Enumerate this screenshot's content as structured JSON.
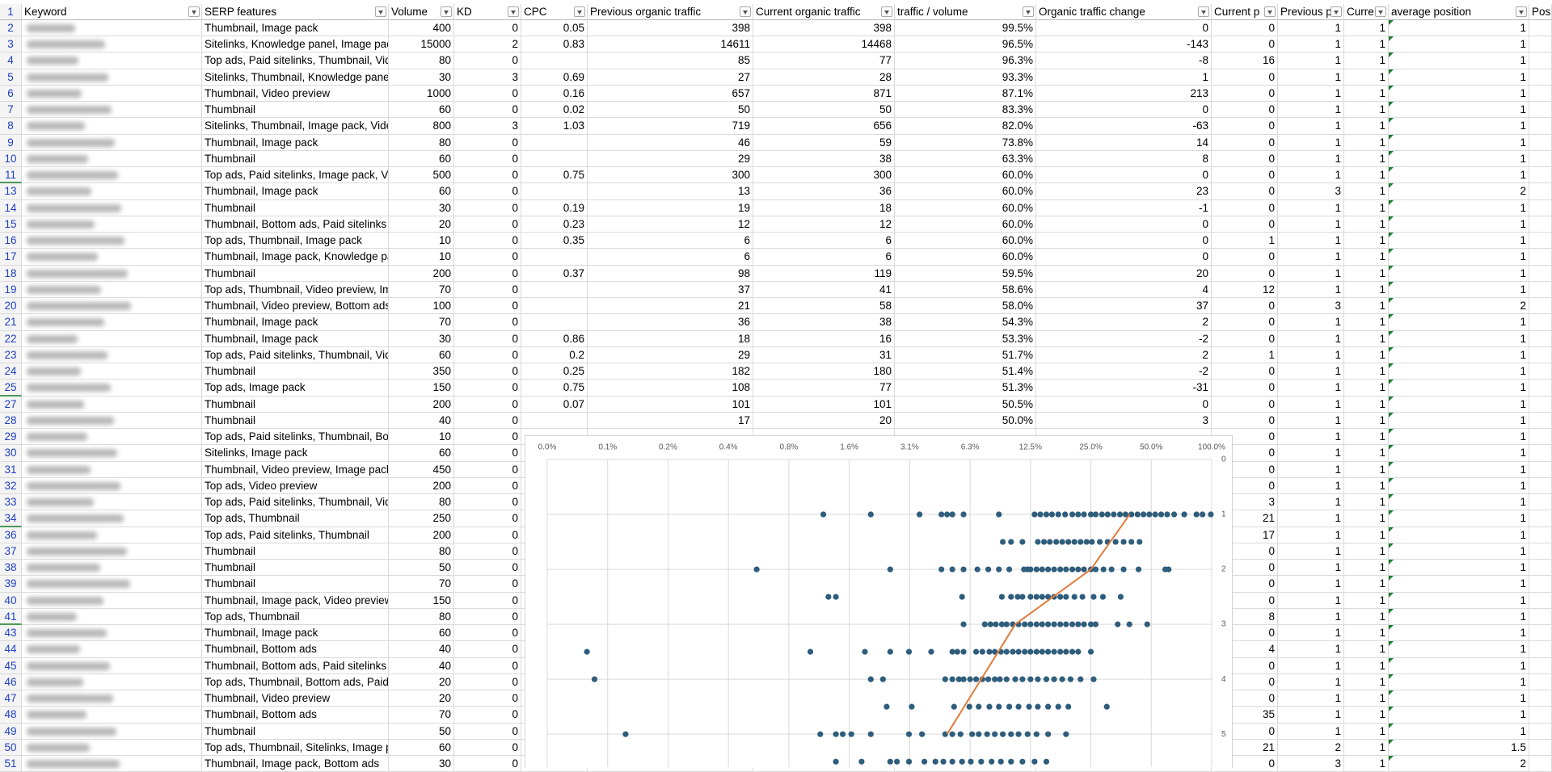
{
  "table": {
    "header_row_number": 1,
    "columns": [
      "Keyword",
      "SERP features",
      "Volume",
      "KD",
      "CPC",
      "Previous organic traffic",
      "Current organic traffic",
      "traffic / volume",
      "Organic traffic change",
      "Current p",
      "Previous p",
      "Curre",
      "average position",
      "Posi"
    ],
    "rows": [
      [
        2,
        "Thumbnail, Image pack",
        400,
        0,
        0.05,
        398,
        398,
        "99.5%",
        0,
        0,
        1,
        1,
        1
      ],
      [
        3,
        "Sitelinks, Knowledge panel, Image pac",
        15000,
        2,
        0.83,
        14611,
        14468,
        "96.5%",
        -143,
        0,
        1,
        1,
        1
      ],
      [
        4,
        "Top ads, Paid sitelinks, Thumbnail, Vid",
        80,
        0,
        null,
        85,
        77,
        "96.3%",
        -8,
        16,
        1,
        1,
        1
      ],
      [
        5,
        "Sitelinks, Thumbnail, Knowledge pane",
        30,
        3,
        0.69,
        27,
        28,
        "93.3%",
        1,
        0,
        1,
        1,
        1
      ],
      [
        6,
        "Thumbnail, Video preview",
        1000,
        0,
        0.16,
        657,
        871,
        "87.1%",
        213,
        0,
        1,
        1,
        1
      ],
      [
        7,
        "Thumbnail",
        60,
        0,
        0.02,
        50,
        50,
        "83.3%",
        0,
        0,
        1,
        1,
        1
      ],
      [
        8,
        "Sitelinks, Thumbnail, Image pack, Vide",
        800,
        3,
        1.03,
        719,
        656,
        "82.0%",
        -63,
        0,
        1,
        1,
        1
      ],
      [
        9,
        "Thumbnail, Image pack",
        80,
        0,
        null,
        46,
        59,
        "73.8%",
        14,
        0,
        1,
        1,
        1
      ],
      [
        10,
        "Thumbnail",
        60,
        0,
        null,
        29,
        38,
        "63.3%",
        8,
        0,
        1,
        1,
        1
      ],
      [
        11,
        "Top ads, Paid sitelinks, Image pack, Vi",
        500,
        0,
        0.75,
        300,
        300,
        "60.0%",
        0,
        0,
        1,
        1,
        1
      ],
      [
        13,
        "Thumbnail, Image pack",
        60,
        0,
        null,
        13,
        36,
        "60.0%",
        23,
        0,
        3,
        1,
        2
      ],
      [
        14,
        "Thumbnail",
        30,
        0,
        0.19,
        19,
        18,
        "60.0%",
        -1,
        0,
        1,
        1,
        1
      ],
      [
        15,
        "Thumbnail, Bottom ads, Paid sitelinks",
        20,
        0,
        0.23,
        12,
        12,
        "60.0%",
        0,
        0,
        1,
        1,
        1
      ],
      [
        16,
        "Top ads, Thumbnail, Image pack",
        10,
        0,
        0.35,
        6,
        6,
        "60.0%",
        0,
        1,
        1,
        1,
        1
      ],
      [
        17,
        "Thumbnail, Image pack, Knowledge pa",
        10,
        0,
        null,
        6,
        6,
        "60.0%",
        0,
        0,
        1,
        1,
        1
      ],
      [
        18,
        "Thumbnail",
        200,
        0,
        0.37,
        98,
        119,
        "59.5%",
        20,
        0,
        1,
        1,
        1
      ],
      [
        19,
        "Top ads, Thumbnail, Video preview, Im",
        70,
        0,
        null,
        37,
        41,
        "58.6%",
        4,
        12,
        1,
        1,
        1
      ],
      [
        20,
        "Thumbnail, Video preview, Bottom ads",
        100,
        0,
        null,
        21,
        58,
        "58.0%",
        37,
        0,
        3,
        1,
        2
      ],
      [
        21,
        "Thumbnail, Image pack",
        70,
        0,
        null,
        36,
        38,
        "54.3%",
        2,
        0,
        1,
        1,
        1
      ],
      [
        22,
        "Thumbnail, Image pack",
        30,
        0,
        0.86,
        18,
        16,
        "53.3%",
        -2,
        0,
        1,
        1,
        1
      ],
      [
        23,
        "Top ads, Paid sitelinks, Thumbnail, Vid",
        60,
        0,
        0.2,
        29,
        31,
        "51.7%",
        2,
        1,
        1,
        1,
        1
      ],
      [
        24,
        "Thumbnail",
        350,
        0,
        0.25,
        182,
        180,
        "51.4%",
        -2,
        0,
        1,
        1,
        1
      ],
      [
        25,
        "Top ads, Image pack",
        150,
        0,
        0.75,
        108,
        77,
        "51.3%",
        -31,
        0,
        1,
        1,
        1
      ],
      [
        27,
        "Thumbnail",
        200,
        0,
        0.07,
        101,
        101,
        "50.5%",
        0,
        0,
        1,
        1,
        1
      ],
      [
        28,
        "Thumbnail",
        40,
        0,
        null,
        17,
        20,
        "50.0%",
        3,
        0,
        1,
        1,
        1
      ],
      [
        29,
        "Top ads, Paid sitelinks, Thumbnail, Bot",
        10,
        0,
        null,
        null,
        null,
        null,
        null,
        0,
        1,
        1,
        1
      ],
      [
        30,
        "Sitelinks, Image pack",
        60,
        0,
        null,
        null,
        null,
        null,
        null,
        0,
        1,
        1,
        1
      ],
      [
        31,
        "Thumbnail, Video preview, Image pack",
        450,
        0,
        null,
        null,
        null,
        null,
        null,
        0,
        1,
        1,
        1
      ],
      [
        32,
        "Top ads, Video preview",
        200,
        0,
        null,
        null,
        null,
        null,
        null,
        0,
        1,
        1,
        1
      ],
      [
        33,
        "Top ads, Paid sitelinks, Thumbnail, Vid",
        80,
        0,
        null,
        null,
        null,
        null,
        null,
        3,
        1,
        1,
        1
      ],
      [
        34,
        "Top ads, Thumbnail",
        250,
        0,
        null,
        null,
        null,
        null,
        null,
        21,
        1,
        1,
        1
      ],
      [
        36,
        "Top ads, Paid sitelinks, Thumbnail",
        200,
        0,
        null,
        null,
        null,
        null,
        null,
        17,
        1,
        1,
        1
      ],
      [
        37,
        "Thumbnail",
        80,
        0,
        null,
        null,
        null,
        null,
        null,
        0,
        1,
        1,
        1
      ],
      [
        38,
        "Thumbnail",
        50,
        0,
        null,
        null,
        null,
        null,
        null,
        0,
        1,
        1,
        1
      ],
      [
        39,
        "Thumbnail",
        70,
        0,
        null,
        null,
        null,
        null,
        null,
        0,
        1,
        1,
        1
      ],
      [
        40,
        "Thumbnail, Image pack, Video preview",
        150,
        0,
        null,
        null,
        null,
        null,
        null,
        0,
        1,
        1,
        1
      ],
      [
        41,
        "Top ads, Thumbnail",
        80,
        0,
        null,
        null,
        null,
        null,
        null,
        8,
        1,
        1,
        1
      ],
      [
        43,
        "Thumbnail, Image pack",
        60,
        0,
        null,
        null,
        null,
        null,
        null,
        0,
        1,
        1,
        1
      ],
      [
        44,
        "Thumbnail, Bottom ads",
        40,
        0,
        null,
        null,
        null,
        null,
        null,
        4,
        1,
        1,
        1
      ],
      [
        45,
        "Thumbnail, Bottom ads, Paid sitelinks",
        40,
        0,
        null,
        null,
        null,
        null,
        null,
        0,
        1,
        1,
        1
      ],
      [
        46,
        "Top ads, Thumbnail, Bottom ads, Paid",
        20,
        0,
        null,
        null,
        null,
        null,
        null,
        0,
        1,
        1,
        1
      ],
      [
        47,
        "Thumbnail, Video preview",
        20,
        0,
        null,
        null,
        null,
        null,
        null,
        0,
        1,
        1,
        1
      ],
      [
        48,
        "Thumbnail, Bottom ads",
        70,
        0,
        null,
        null,
        null,
        null,
        null,
        35,
        1,
        1,
        1
      ],
      [
        49,
        "Thumbnail",
        50,
        0,
        null,
        null,
        null,
        null,
        null,
        0,
        1,
        1,
        1
      ],
      [
        50,
        "Top ads, Thumbnail, Sitelinks, Image p",
        60,
        0,
        null,
        null,
        null,
        null,
        null,
        21,
        2,
        1,
        1.5
      ],
      [
        51,
        "Thumbnail, Image pack, Bottom ads",
        30,
        0,
        null,
        null,
        null,
        null,
        null,
        0,
        3,
        1,
        2
      ]
    ]
  },
  "chart_data": {
    "type": "scatter",
    "xscale": "log",
    "y_reversed": true,
    "grid": true,
    "xlim": [
      0.048828125,
      100
    ],
    "ylim": [
      0,
      5.6
    ],
    "xticks": [
      {
        "value": 0.048828125,
        "label": "0.0%"
      },
      {
        "value": 0.09765625,
        "label": "0.1%"
      },
      {
        "value": 0.1953125,
        "label": "0.2%"
      },
      {
        "value": 0.390625,
        "label": "0.4%"
      },
      {
        "value": 0.78125,
        "label": "0.8%"
      },
      {
        "value": 1.5625,
        "label": "1.6%"
      },
      {
        "value": 3.125,
        "label": "3.1%"
      },
      {
        "value": 6.25,
        "label": "6.3%"
      },
      {
        "value": 12.5,
        "label": "12.5%"
      },
      {
        "value": 25,
        "label": "25.0%"
      },
      {
        "value": 50,
        "label": "50.0%"
      },
      {
        "value": 100,
        "label": "100.0%"
      }
    ],
    "yticks": [
      0,
      1,
      2,
      3,
      4,
      5
    ],
    "series": [
      {
        "mode": "markers",
        "color": "#2f5d7c",
        "x": [
          1.16,
          2.0,
          3.5,
          4.5,
          4.8,
          5.1,
          5.8,
          8.7,
          13.1,
          14.0,
          15.0,
          16.0,
          17.2,
          18.6,
          20.2,
          21.6,
          23.1,
          25,
          26.4,
          28.4,
          30.3,
          32.5,
          34.9,
          37.2,
          39.8,
          42.7,
          45.7,
          48.9,
          52.3,
          56,
          60,
          65,
          73,
          84,
          90,
          99,
          9.1,
          10.0,
          11.4,
          13.6,
          14.6,
          15.6,
          16.8,
          18.0,
          19.3,
          20.7,
          22.2,
          23.8,
          25.3,
          27.7,
          30.3,
          33.2,
          36.4,
          39.8,
          43.7,
          0.54,
          2.5,
          4.5,
          5.1,
          5.8,
          6.8,
          7.7,
          8.7,
          9.8,
          11.6,
          12.1,
          12.5,
          13.4,
          14.3,
          15.3,
          16.4,
          17.6,
          18.8,
          20.2,
          21.6,
          23.1,
          25,
          26.4,
          28.9,
          31.7,
          36.4,
          43.2,
          58.7,
          61,
          1.23,
          1.34,
          5.7,
          9.0,
          10.0,
          10.8,
          11.4,
          12.5,
          13.4,
          14.3,
          15.3,
          16.4,
          17.6,
          18.8,
          20.7,
          22.7,
          25.8,
          28.7,
          35.2,
          5.8,
          7.4,
          7.9,
          8.4,
          9.0,
          9.5,
          10.2,
          10.9,
          11.7,
          12.5,
          13.4,
          14.3,
          15.3,
          16.4,
          17.6,
          18.8,
          20.2,
          21.6,
          23.1,
          25,
          26.4,
          34.0,
          38.9,
          47.7,
          0.077,
          1.0,
          1.87,
          2.5,
          3.1,
          4.0,
          5.1,
          5.4,
          5.8,
          6.7,
          7.2,
          7.8,
          8.3,
          8.9,
          9.5,
          10.2,
          10.9,
          11.7,
          12.5,
          13.4,
          14.3,
          15.3,
          16.4,
          17.6,
          18.8,
          20.2,
          21.6,
          25,
          0.084,
          2.0,
          2.3,
          4.7,
          5.1,
          5.5,
          5.8,
          6.25,
          6.7,
          7.2,
          7.7,
          8.3,
          8.8,
          9.5,
          10.5,
          11.4,
          12.5,
          13.6,
          15.0,
          16.4,
          18.0,
          19.8,
          22.2,
          25.8,
          2.4,
          3.2,
          5.2,
          6.2,
          6.9,
          7.8,
          8.7,
          9.8,
          10.9,
          12.3,
          13.6,
          15.3,
          17.2,
          19.3,
          30,
          0.12,
          1.12,
          1.34,
          1.45,
          1.6,
          2.0,
          3.1,
          3.6,
          4.7,
          5.1,
          5.6,
          6.4,
          6.9,
          7.6,
          8.3,
          9.1,
          10.0,
          10.9,
          12.1,
          13.4,
          15.3,
          18.8,
          1.34,
          1.8,
          2.5,
          2.7,
          3.1,
          3.7,
          4.2,
          4.6,
          5.1,
          5.7,
          6.3,
          7.1,
          8.0,
          8.9,
          10.0,
          11.4,
          13.1,
          15.0
        ],
        "values": [
          1,
          1,
          1,
          1,
          1,
          1,
          1,
          1,
          1,
          1,
          1,
          1,
          1,
          1,
          1,
          1,
          1,
          1,
          1,
          1,
          1,
          1,
          1,
          1,
          1,
          1,
          1,
          1,
          1,
          1,
          1,
          1,
          1,
          1,
          1,
          1,
          1.5,
          1.5,
          1.5,
          1.5,
          1.5,
          1.5,
          1.5,
          1.5,
          1.5,
          1.5,
          1.5,
          1.5,
          1.5,
          1.5,
          1.5,
          1.5,
          1.5,
          1.5,
          1.5,
          2,
          2,
          2,
          2,
          2,
          2,
          2,
          2,
          2,
          2,
          2,
          2,
          2,
          2,
          2,
          2,
          2,
          2,
          2,
          2,
          2,
          2,
          2,
          2,
          2,
          2,
          2,
          2,
          2,
          2.5,
          2.5,
          2.5,
          2.5,
          2.5,
          2.5,
          2.5,
          2.5,
          2.5,
          2.5,
          2.5,
          2.5,
          2.5,
          2.5,
          2.5,
          2.5,
          2.5,
          2.5,
          2.5,
          3,
          3,
          3,
          3,
          3,
          3,
          3,
          3,
          3,
          3,
          3,
          3,
          3,
          3,
          3,
          3,
          3,
          3,
          3,
          3,
          3,
          3,
          3,
          3,
          3.5,
          3.5,
          3.5,
          3.5,
          3.5,
          3.5,
          3.5,
          3.5,
          3.5,
          3.5,
          3.5,
          3.5,
          3.5,
          3.5,
          3.5,
          3.5,
          3.5,
          3.5,
          3.5,
          3.5,
          3.5,
          3.5,
          3.5,
          3.5,
          3.5,
          3.5,
          3.5,
          3.5,
          4,
          4,
          4,
          4,
          4,
          4,
          4,
          4,
          4,
          4,
          4,
          4,
          4,
          4,
          4,
          4,
          4,
          4,
          4,
          4,
          4,
          4,
          4,
          4,
          4.5,
          4.5,
          4.5,
          4.5,
          4.5,
          4.5,
          4.5,
          4.5,
          4.5,
          4.5,
          4.5,
          4.5,
          4.5,
          4.5,
          4.5,
          5,
          5,
          5,
          5,
          5,
          5,
          5,
          5,
          5,
          5,
          5,
          5,
          5,
          5,
          5,
          5,
          5,
          5,
          5,
          5,
          5,
          5,
          5.5,
          5.5,
          5.5,
          5.5,
          5.5,
          5.5,
          5.5,
          5.5,
          5.5,
          5.5,
          5.5,
          5.5,
          5.5,
          5.5,
          5.5,
          5.5,
          5.5,
          5.5
        ]
      },
      {
        "mode": "line",
        "color": "#e07b39",
        "x": [
          39,
          25,
          10.5,
          7.1,
          4.8
        ],
        "values": [
          1,
          2,
          3,
          4,
          5
        ]
      }
    ]
  }
}
